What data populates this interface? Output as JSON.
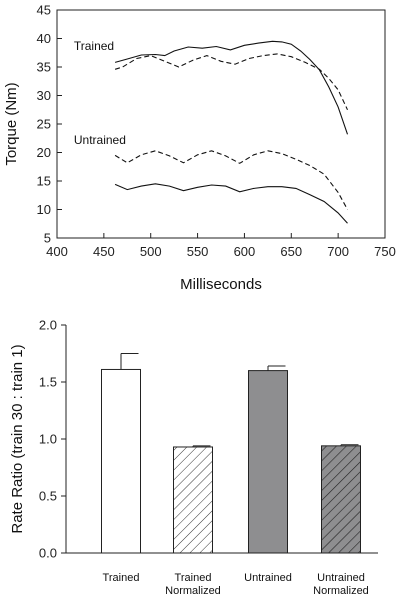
{
  "chart_data": [
    {
      "type": "line",
      "xlabel": "Milliseconds",
      "ylabel": "Torque (Nm)",
      "xlim": [
        400,
        750
      ],
      "ylim": [
        5,
        45
      ],
      "xticks": [
        400,
        450,
        500,
        550,
        600,
        650,
        700,
        750
      ],
      "yticks": [
        5,
        10,
        15,
        20,
        25,
        30,
        35,
        40,
        45
      ],
      "grid": false,
      "annotations": [
        {
          "text": "Trained",
          "x": 418,
          "y": 38
        },
        {
          "text": "Untrained",
          "x": 418,
          "y": 21.5
        }
      ],
      "series": [
        {
          "style": "solid",
          "group": "Trained",
          "x": [
            462,
            475,
            490,
            505,
            515,
            525,
            540,
            555,
            570,
            585,
            600,
            615,
            630,
            640,
            650,
            660,
            670,
            680,
            690,
            700,
            710
          ],
          "y": [
            35.8,
            36.4,
            37.1,
            37.2,
            37.0,
            37.8,
            38.5,
            38.3,
            38.6,
            38.0,
            38.8,
            39.2,
            39.5,
            39.4,
            39.0,
            37.8,
            36.3,
            34.5,
            31.5,
            28.0,
            23.2
          ]
        },
        {
          "style": "dashed",
          "group": "Trained",
          "x": [
            462,
            470,
            485,
            500,
            515,
            530,
            545,
            560,
            575,
            590,
            605,
            620,
            635,
            650,
            665,
            680,
            690,
            700,
            710
          ],
          "y": [
            34.6,
            35.0,
            36.5,
            37.0,
            36.0,
            35.0,
            36.2,
            37.0,
            36.0,
            35.5,
            36.5,
            37.0,
            37.3,
            36.8,
            35.8,
            34.6,
            33.0,
            31.0,
            27.5
          ]
        },
        {
          "style": "dashed",
          "group": "Untrained",
          "x": [
            462,
            475,
            490,
            505,
            520,
            535,
            550,
            565,
            580,
            595,
            610,
            625,
            640,
            655,
            670,
            685,
            700,
            710
          ],
          "y": [
            19.5,
            18.2,
            19.6,
            20.3,
            19.4,
            18.2,
            19.6,
            20.3,
            19.4,
            18.1,
            19.6,
            20.3,
            19.8,
            18.8,
            17.7,
            16.2,
            13.0,
            10.0
          ]
        },
        {
          "style": "solid",
          "group": "Untrained",
          "x": [
            462,
            475,
            490,
            505,
            520,
            535,
            550,
            565,
            580,
            595,
            610,
            625,
            640,
            655,
            670,
            685,
            700,
            710
          ],
          "y": [
            14.4,
            13.5,
            14.1,
            14.5,
            14.1,
            13.3,
            13.9,
            14.3,
            14.1,
            13.1,
            13.7,
            14.0,
            14.0,
            13.7,
            12.6,
            11.4,
            9.4,
            7.6
          ]
        }
      ]
    },
    {
      "type": "bar",
      "ylabel": "Rate Ratio (train 30 : train 1)",
      "ylim": [
        0.0,
        2.0
      ],
      "yticks": [
        "0.0",
        "0.5",
        "1.0",
        "1.5",
        "2.0"
      ],
      "grid": false,
      "categories": [
        [
          "Trained"
        ],
        [
          "Trained",
          "Normalized"
        ],
        [
          "Untrained"
        ],
        [
          "Untrained",
          "Normalized"
        ]
      ],
      "values": [
        1.61,
        0.93,
        1.6,
        0.94
      ],
      "errors": [
        0.14,
        0.01,
        0.04,
        0.01
      ],
      "fills": [
        "white",
        "hatch-light",
        "#8e8e90",
        "hatch-dark"
      ]
    }
  ]
}
